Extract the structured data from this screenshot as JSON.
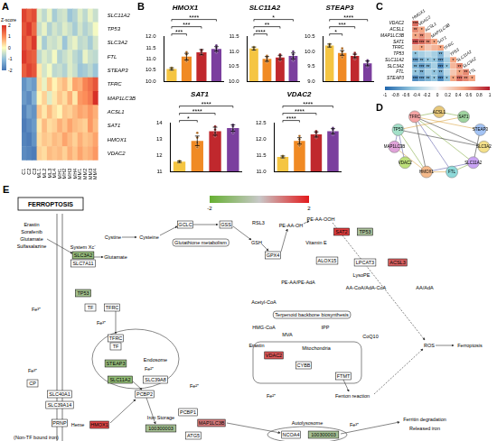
{
  "panel_labels": [
    "A",
    "B",
    "C",
    "D",
    "E"
  ],
  "heatmap": {
    "type": "heatmap",
    "rows": [
      "SLC11A2",
      "TP53",
      "SLC3A2",
      "FTL",
      "STEAP3",
      "TFRC",
      "MAP1LC3B",
      "ACSL1",
      "SAT1",
      "HMOX1",
      "VDAC2"
    ],
    "columns": [
      "C1",
      "C2",
      "C3",
      "ML1",
      "ML2",
      "ML3",
      "ML4",
      "MH1",
      "MH2",
      "MH3",
      "MH4",
      "MM1",
      "MM2",
      "MM3",
      "MM4"
    ],
    "cells": [
      [
        1.8,
        1.5,
        1.7,
        -0.3,
        -0.6,
        -0.2,
        -0.8,
        -0.5,
        -0.4,
        -0.9,
        -0.7,
        -0.3,
        -0.6,
        -0.2,
        -0.5
      ],
      [
        1.6,
        1.9,
        1.4,
        -0.5,
        -0.2,
        -0.7,
        -0.4,
        -0.6,
        -0.3,
        -0.5,
        -0.8,
        -0.4,
        -0.7,
        -0.5,
        -0.1
      ],
      [
        1.7,
        1.4,
        1.9,
        -0.2,
        -0.8,
        -0.4,
        -0.5,
        -0.3,
        -0.9,
        -0.4,
        -0.2,
        -0.6,
        -0.5,
        -0.8,
        -0.4
      ],
      [
        1.9,
        1.6,
        1.5,
        -0.6,
        -0.3,
        -0.5,
        -0.1,
        -0.7,
        -0.5,
        -0.3,
        -0.6,
        -0.8,
        -0.2,
        -0.5,
        -0.6
      ],
      [
        1.5,
        1.8,
        1.6,
        0.2,
        -0.4,
        -0.1,
        -0.6,
        -0.5,
        -0.7,
        -0.3,
        -0.5,
        -0.9,
        -0.8,
        -0.6,
        -0.9
      ],
      [
        -1.6,
        -1.3,
        -1.5,
        0.3,
        -0.2,
        0.5,
        0.1,
        0.4,
        0.6,
        0.2,
        0.8,
        0.7,
        1.1,
        1.3,
        1.6
      ],
      [
        -1.5,
        -1.7,
        -1.2,
        0.1,
        0.4,
        -0.3,
        0.2,
        0.5,
        0.3,
        0.7,
        0.2,
        0.9,
        1.0,
        1.2,
        2.0
      ],
      [
        -1.8,
        -1.4,
        -1.6,
        0.5,
        0.2,
        0.6,
        0.3,
        0.1,
        0.5,
        0.4,
        0.6,
        0.8,
        0.7,
        0.9,
        0.7
      ],
      [
        -1.9,
        -1.7,
        -1.5,
        0.2,
        0.6,
        0.3,
        0.4,
        0.7,
        0.5,
        0.8,
        0.6,
        0.5,
        0.4,
        0.9,
        0.6
      ],
      [
        -1.8,
        -1.9,
        -1.6,
        0.3,
        0.5,
        0.4,
        0.6,
        0.5,
        0.8,
        0.6,
        0.4,
        0.7,
        0.5,
        0.6,
        0.8
      ],
      [
        -1.7,
        -1.8,
        -1.9,
        0.4,
        0.3,
        0.6,
        0.5,
        0.6,
        0.4,
        0.7,
        0.5,
        0.8,
        0.6,
        0.7,
        0.9
      ]
    ],
    "colorbar": {
      "title": "Z-score",
      "range": [
        -2,
        2
      ],
      "ticks": [
        -2,
        -1,
        0,
        1,
        2
      ],
      "colors": [
        "#4575b4",
        "#91bfdb",
        "#ffffbf",
        "#fc8d59",
        "#d73027"
      ]
    }
  },
  "chart_data": [
    {
      "type": "bar",
      "title": "HMOX1",
      "categories": [
        "C",
        "ML",
        "MH",
        "MM"
      ],
      "values": [
        10.55,
        11.1,
        11.3,
        11.45
      ],
      "errors": [
        0.05,
        0.15,
        0.12,
        0.1
      ],
      "points": [
        [
          10.5,
          10.55,
          10.6
        ],
        [
          10.9,
          11.0,
          11.2,
          11.3
        ],
        [
          11.2,
          11.3,
          11.35,
          11.4
        ],
        [
          11.3,
          11.4,
          11.5,
          11.6
        ]
      ],
      "colors": [
        "#f5c542",
        "#f08a24",
        "#c0282d",
        "#7b3f9e"
      ],
      "ylim": [
        10,
        12
      ],
      "yticks": [
        {
          "value": 10,
          "label": "10.0"
        },
        {
          "value": 10.5,
          "label": "10.5"
        },
        {
          "value": 11,
          "label": "11.0"
        },
        {
          "value": 11.5,
          "label": "11.5"
        },
        {
          "value": 12,
          "label": "12.0"
        }
      ],
      "grid": false,
      "tick_labels": "y",
      "annotations": [
        {
          "from": "C",
          "to": "ML",
          "text": "***"
        },
        {
          "from": "C",
          "to": "MH",
          "text": "***"
        },
        {
          "from": "C",
          "to": "MM",
          "text": "****"
        }
      ]
    },
    {
      "type": "bar",
      "title": "SLC11A2",
      "categories": [
        "C",
        "ML",
        "MH",
        "MM"
      ],
      "values": [
        11.1,
        10.75,
        10.8,
        10.85
      ],
      "errors": [
        0.05,
        0.08,
        0.07,
        0.1
      ],
      "points": [
        [
          11.05,
          11.1,
          11.15
        ],
        [
          10.65,
          10.7,
          10.8,
          10.85
        ],
        [
          10.7,
          10.8,
          10.85,
          10.9
        ],
        [
          10.7,
          10.8,
          10.9,
          11.0
        ]
      ],
      "colors": [
        "#f5c542",
        "#f08a24",
        "#c0282d",
        "#7b3f9e"
      ],
      "ylim": [
        10,
        11.5
      ],
      "yticks": [
        {
          "value": 10,
          "label": "10.0"
        },
        {
          "value": 10.5,
          "label": "10.5"
        },
        {
          "value": 11,
          "label": "11.0"
        },
        {
          "value": 11.5,
          "label": "11.5"
        }
      ],
      "grid": false,
      "tick_labels": "y",
      "annotations": [
        {
          "from": "C",
          "to": "ML",
          "text": "****"
        },
        {
          "from": "C",
          "to": "MH",
          "text": "**"
        },
        {
          "from": "C",
          "to": "MM",
          "text": "*"
        }
      ]
    },
    {
      "type": "bar",
      "title": "STEAP3",
      "categories": [
        "C",
        "ML",
        "MH",
        "MM"
      ],
      "values": [
        10.2,
        9.95,
        9.85,
        9.6
      ],
      "errors": [
        0.05,
        0.08,
        0.06,
        0.08
      ],
      "points": [
        [
          10.15,
          10.2,
          10.25
        ],
        [
          9.8,
          9.9,
          10.0,
          10.1
        ],
        [
          9.75,
          9.8,
          9.9,
          9.95
        ],
        [
          9.5,
          9.55,
          9.65,
          9.7
        ]
      ],
      "colors": [
        "#f5c542",
        "#f08a24",
        "#c0282d",
        "#7b3f9e"
      ],
      "ylim": [
        9,
        10.5
      ],
      "yticks": [
        {
          "value": 9,
          "label": "9.0"
        },
        {
          "value": 9.5,
          "label": "9.5"
        },
        {
          "value": 10,
          "label": "10.0"
        },
        {
          "value": 10.5,
          "label": "10.5"
        }
      ],
      "grid": false,
      "tick_labels": "y",
      "annotations": [
        {
          "from": "C",
          "to": "ML",
          "text": "*"
        },
        {
          "from": "C",
          "to": "MH",
          "text": "***"
        },
        {
          "from": "C",
          "to": "MM",
          "text": "****"
        }
      ]
    },
    {
      "type": "bar",
      "title": "SAT1",
      "categories": [
        "C",
        "ML",
        "MH",
        "MM"
      ],
      "values": [
        11.6,
        12.9,
        13.5,
        13.7
      ],
      "errors": [
        0.05,
        0.3,
        0.25,
        0.2
      ],
      "points": [
        [
          11.55,
          11.6,
          11.65
        ],
        [
          12.5,
          12.8,
          13.1,
          13.4
        ],
        [
          13.2,
          13.4,
          13.6,
          13.8
        ],
        [
          13.4,
          13.6,
          13.8,
          13.9
        ]
      ],
      "colors": [
        "#f5c542",
        "#f08a24",
        "#c0282d",
        "#7b3f9e"
      ],
      "ylim": [
        11,
        14
      ],
      "yticks": [
        11,
        12,
        13,
        14
      ],
      "grid": false,
      "tick_labels": "y",
      "annotations": [
        {
          "from": "C",
          "to": "ML",
          "text": "*"
        },
        {
          "from": "C",
          "to": "MH",
          "text": "****"
        },
        {
          "from": "C",
          "to": "MM",
          "text": "****"
        }
      ]
    },
    {
      "type": "bar",
      "title": "VDAC2",
      "categories": [
        "C",
        "ML",
        "MH",
        "MM"
      ],
      "values": [
        11.45,
        11.95,
        12.15,
        12.25
      ],
      "errors": [
        0.03,
        0.1,
        0.08,
        0.08
      ],
      "points": [
        [
          11.42,
          11.45,
          11.48
        ],
        [
          11.8,
          11.9,
          12.0,
          12.1
        ],
        [
          12.05,
          12.1,
          12.2,
          12.25
        ],
        [
          12.15,
          12.2,
          12.3,
          12.35
        ]
      ],
      "colors": [
        "#f5c542",
        "#f08a24",
        "#c0282d",
        "#7b3f9e"
      ],
      "ylim": [
        11,
        12.5
      ],
      "yticks": [
        {
          "value": 11,
          "label": "11.0"
        },
        {
          "value": 11.5,
          "label": "11.5"
        },
        {
          "value": 12,
          "label": "12.0"
        },
        {
          "value": 12.5,
          "label": "12.5"
        }
      ],
      "grid": false,
      "tick_labels": "y",
      "annotations": [
        {
          "from": "C",
          "to": "ML",
          "text": "****"
        },
        {
          "from": "C",
          "to": "MH",
          "text": "****"
        },
        {
          "from": "C",
          "to": "MM",
          "text": "****"
        }
      ]
    }
  ],
  "correlation": {
    "type": "heatmap",
    "genes": [
      "HMOX1",
      "VDAC2",
      "ACSL1",
      "MAP1LC3B",
      "SAT1",
      "TFRC",
      "TP53",
      "SLC11A2",
      "SLC3A2",
      "FTL",
      "STEAP3"
    ],
    "cells": [
      [],
      [
        0.7
      ],
      [
        0.6,
        0.5
      ],
      [
        0.5,
        0.6,
        0.4
      ],
      [
        0.8,
        0.7,
        0.6,
        0.5
      ],
      [
        0.4,
        0.5,
        0.3,
        0.4,
        0.5
      ],
      [
        -0.5,
        -0.4,
        -0.3,
        -0.4,
        -0.6,
        -0.2
      ],
      [
        -0.7,
        -0.6,
        -0.5,
        -0.5,
        -0.7,
        -0.4,
        0.5
      ],
      [
        -0.6,
        -0.7,
        -0.6,
        -0.4,
        -0.8,
        -0.5,
        0.4,
        0.6
      ],
      [
        -0.5,
        -0.6,
        -0.4,
        -0.5,
        -0.6,
        -0.3,
        0.3,
        0.5,
        0.6
      ],
      [
        -0.8,
        -0.7,
        -0.6,
        -0.5,
        -0.8,
        -0.5,
        0.5,
        0.7,
        0.6,
        0.5
      ]
    ],
    "stars": [
      [],
      [
        "***"
      ],
      [
        "**",
        "*"
      ],
      [
        "*",
        "**",
        null
      ],
      [
        "***",
        "***",
        "**",
        "*"
      ],
      [
        null,
        "*",
        null,
        null,
        "*"
      ],
      [
        "*",
        null,
        null,
        null,
        "**",
        null
      ],
      [
        "***",
        "**",
        "*",
        "*",
        "***",
        null,
        "*"
      ],
      [
        "**",
        "***",
        "**",
        null,
        "***",
        "*",
        null,
        "**"
      ],
      [
        "*",
        "**",
        null,
        "*",
        "**",
        null,
        null,
        "*",
        "**"
      ],
      [
        "***",
        "***",
        "**",
        "*",
        "***",
        "*",
        "*",
        "***",
        "**",
        "*"
      ]
    ],
    "colorbar": {
      "range": [
        -1,
        1
      ],
      "ticks": [
        -1,
        -0.8,
        -0.6,
        -0.4,
        -0.2,
        0,
        0.2,
        0.4,
        0.6,
        0.8,
        1
      ],
      "colors": [
        "#2166ac",
        "#92c5de",
        "#f7f7f7",
        "#f4a582",
        "#b2182b"
      ]
    }
  },
  "network": {
    "nodes": [
      {
        "label": "ACSL1",
        "color": "#e7c87a"
      },
      {
        "label": "SAT1",
        "color": "#9fd39f"
      },
      {
        "label": "STEAP3",
        "color": "#a3c3f4"
      },
      {
        "label": "SLC3A2",
        "color": "#f4e08a"
      },
      {
        "label": "SLC11A2",
        "color": "#c9a3f4"
      },
      {
        "label": "FTL",
        "color": "#8ed9d9"
      },
      {
        "label": "HMOX1",
        "color": "#f4b98a"
      },
      {
        "label": "VDAC2",
        "color": "#bde07a"
      },
      {
        "label": "MAP1LC3B",
        "color": "#e0a3d9"
      },
      {
        "label": "TP53",
        "color": "#a3e0c9"
      },
      {
        "label": "TFRC",
        "color": "#f4a3a3"
      }
    ],
    "edges": [
      [
        "HMOX1",
        "TP53"
      ],
      [
        "HMOX1",
        "FTL"
      ],
      [
        "HMOX1",
        "SLC11A2"
      ],
      [
        "HMOX1",
        "TFRC"
      ],
      [
        "TFRC",
        "SLC11A2"
      ],
      [
        "TFRC",
        "STEAP3"
      ],
      [
        "TFRC",
        "FTL"
      ],
      [
        "STEAP3",
        "SLC11A2"
      ],
      [
        "FTL",
        "SLC11A2"
      ],
      [
        "TP53",
        "SAT1"
      ],
      [
        "TP53",
        "MAP1LC3B"
      ],
      [
        "SLC3A2",
        "TP53"
      ],
      [
        "ACSL1",
        "SAT1"
      ],
      [
        "MAP1LC3B",
        "HMOX1"
      ],
      [
        "VDAC2",
        "TP53"
      ],
      [
        "SLC3A2",
        "TFRC"
      ],
      [
        "ACSL1",
        "TFRC"
      ]
    ]
  },
  "pathway": {
    "title": "FERROPTOSIS",
    "colorbar": {
      "range": [
        -2,
        2
      ],
      "ticks": [
        -2,
        2
      ],
      "colors": [
        "#66b032",
        "#c8c8c8",
        "#e31a1c"
      ]
    },
    "genes": [
      {
        "label": "SLC3A2",
        "value": -1.0
      },
      {
        "label": "SLC7A11",
        "value": null
      },
      {
        "label": "TP53",
        "value": -0.8
      },
      {
        "label": "GCLC",
        "value": null
      },
      {
        "label": "GSS",
        "value": null
      },
      {
        "label": "GPX4",
        "value": null
      },
      {
        "label": "ALOX15",
        "value": null
      },
      {
        "label": "SAT2",
        "value": 1.6
      },
      {
        "label": "TP53",
        "value": -0.6
      },
      {
        "label": "LPCAT3",
        "value": null
      },
      {
        "label": "ACSL3",
        "value": 1.2
      },
      {
        "label": "TF",
        "value": null
      },
      {
        "label": "TFRC",
        "value": null
      },
      {
        "label": "TFRC",
        "value": null
      },
      {
        "label": "TF",
        "value": null
      },
      {
        "label": "STEAP3",
        "value": -1.0
      },
      {
        "label": "SLC11A2",
        "value": -1.1
      },
      {
        "label": "SLC39A8",
        "value": null
      },
      {
        "label": "CP",
        "value": null
      },
      {
        "label": "SLC40A1",
        "value": null
      },
      {
        "label": "SLC39A14",
        "value": null
      },
      {
        "label": "PRNP",
        "value": null
      },
      {
        "label": "HMOX1",
        "value": 1.5
      },
      {
        "label": "PCBP2",
        "value": null
      },
      {
        "label": "PCBP1",
        "value": null
      },
      {
        "label": "ATG5",
        "value": null
      },
      {
        "label": "MAP1LC3B",
        "value": 0.9
      },
      {
        "label": "100300003",
        "value": -0.7
      },
      {
        "label": "NCOA4",
        "value": null
      },
      {
        "label": "100300003",
        "value": -0.7
      },
      {
        "label": "VDAC2",
        "value": 1.3
      },
      {
        "label": "CYBB",
        "value": null
      },
      {
        "label": "FTMT",
        "value": null
      }
    ],
    "texts": [
      "Erastin",
      "Sorafenib",
      "Glutamate",
      "Sulfasalazine",
      "System Xc⁻",
      "Cystine",
      "Cysteine",
      "Glutamate",
      "Glutathione metabolism",
      "GSH",
      "RSL3",
      "PE-AA-OH",
      "PE-AA-OOH",
      "Vitamin E",
      "LysoPE",
      "PE-AA/PE-AdA",
      "AA-CoA/AdA-CoA",
      "AA/AdA",
      "Acetyl-CoA",
      "Terpenoid backbone biosynthesis",
      "HMG-CoA",
      "MVA",
      "IPP",
      "CoQ10",
      "Erastin",
      "Mitochondria",
      "Fenton reaction",
      "ROS",
      "Ferroptosis",
      "Fe³⁺",
      "Fe³⁺",
      "Endosome",
      "Fe²⁺",
      "Fe²⁺",
      "Fe³⁺",
      "Heme",
      "(Non-TF bound iron)",
      "Iron Storage",
      "Autolysosome",
      "Fe³⁺",
      "Ferritin degradation",
      "Released iron",
      "Fe²⁺"
    ]
  }
}
